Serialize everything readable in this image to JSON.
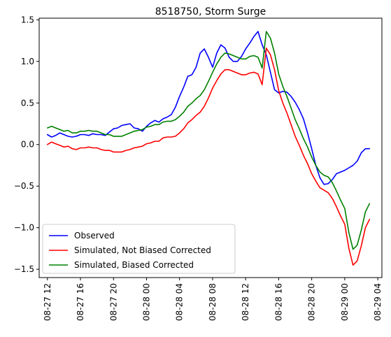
{
  "chart_data": {
    "type": "line",
    "title": "8518750, Storm Surge",
    "xlabel": "",
    "ylabel": "",
    "x_unit": "datetime",
    "xlim": [
      "2021-08-27 11:00",
      "2021-08-29 04:30"
    ],
    "ylim": [
      -1.6,
      1.52
    ],
    "x_ticks": [
      {
        "value": "2021-08-27 12:00",
        "label": "08-27 12"
      },
      {
        "value": "2021-08-27 16:00",
        "label": "08-27 16"
      },
      {
        "value": "2021-08-27 20:00",
        "label": "08-27 20"
      },
      {
        "value": "2021-08-28 00:00",
        "label": "08-28 00"
      },
      {
        "value": "2021-08-28 04:00",
        "label": "08-28 04"
      },
      {
        "value": "2021-08-28 08:00",
        "label": "08-28 08"
      },
      {
        "value": "2021-08-28 12:00",
        "label": "08-28 12"
      },
      {
        "value": "2021-08-28 16:00",
        "label": "08-28 16"
      },
      {
        "value": "2021-08-28 20:00",
        "label": "08-28 20"
      },
      {
        "value": "2021-08-29 00:00",
        "label": "08-29 00"
      },
      {
        "value": "2021-08-29 04:00",
        "label": "08-29 04"
      }
    ],
    "y_ticks": [
      {
        "value": 1.5,
        "label": "1.5"
      },
      {
        "value": 1.0,
        "label": "1.0"
      },
      {
        "value": 0.5,
        "label": "0.5"
      },
      {
        "value": 0.0,
        "label": "0.0"
      },
      {
        "value": -0.5,
        "label": "−0.5"
      },
      {
        "value": -1.0,
        "label": "−1.0"
      },
      {
        "value": -1.5,
        "label": "−1.5"
      }
    ],
    "grid": false,
    "legend_position": "lower-left",
    "series": [
      {
        "name": "Observed",
        "color": "#0000ff",
        "points": [
          [
            "2021-08-27 12:00",
            0.12
          ],
          [
            "2021-08-27 12:30",
            0.09
          ],
          [
            "2021-08-27 13:00",
            0.11
          ],
          [
            "2021-08-27 13:30",
            0.14
          ],
          [
            "2021-08-27 14:00",
            0.12
          ],
          [
            "2021-08-27 14:30",
            0.1
          ],
          [
            "2021-08-27 15:00",
            0.09
          ],
          [
            "2021-08-27 15:30",
            0.1
          ],
          [
            "2021-08-27 16:00",
            0.12
          ],
          [
            "2021-08-27 16:30",
            0.12
          ],
          [
            "2021-08-27 17:00",
            0.11
          ],
          [
            "2021-08-27 17:30",
            0.13
          ],
          [
            "2021-08-27 18:00",
            0.12
          ],
          [
            "2021-08-27 18:30",
            0.12
          ],
          [
            "2021-08-27 19:00",
            0.11
          ],
          [
            "2021-08-27 19:30",
            0.15
          ],
          [
            "2021-08-27 20:00",
            0.19
          ],
          [
            "2021-08-27 20:30",
            0.2
          ],
          [
            "2021-08-27 21:00",
            0.23
          ],
          [
            "2021-08-27 21:30",
            0.24
          ],
          [
            "2021-08-27 22:00",
            0.25
          ],
          [
            "2021-08-27 22:30",
            0.2
          ],
          [
            "2021-08-27 23:00",
            0.19
          ],
          [
            "2021-08-27 23:30",
            0.16
          ],
          [
            "2021-08-28 00:00",
            0.22
          ],
          [
            "2021-08-28 00:30",
            0.26
          ],
          [
            "2021-08-28 01:00",
            0.29
          ],
          [
            "2021-08-28 01:30",
            0.27
          ],
          [
            "2021-08-28 02:00",
            0.31
          ],
          [
            "2021-08-28 02:30",
            0.33
          ],
          [
            "2021-08-28 03:00",
            0.36
          ],
          [
            "2021-08-28 03:30",
            0.45
          ],
          [
            "2021-08-28 04:00",
            0.58
          ],
          [
            "2021-08-28 04:30",
            0.69
          ],
          [
            "2021-08-28 05:00",
            0.82
          ],
          [
            "2021-08-28 05:30",
            0.84
          ],
          [
            "2021-08-28 06:00",
            0.93
          ],
          [
            "2021-08-28 06:30",
            1.1
          ],
          [
            "2021-08-28 07:00",
            1.15
          ],
          [
            "2021-08-28 07:30",
            1.05
          ],
          [
            "2021-08-28 08:00",
            0.93
          ],
          [
            "2021-08-28 08:30",
            1.1
          ],
          [
            "2021-08-28 09:00",
            1.2
          ],
          [
            "2021-08-28 09:30",
            1.16
          ],
          [
            "2021-08-28 10:00",
            1.05
          ],
          [
            "2021-08-28 10:30",
            1.0
          ],
          [
            "2021-08-28 11:00",
            1.0
          ],
          [
            "2021-08-28 11:30",
            1.06
          ],
          [
            "2021-08-28 12:00",
            1.15
          ],
          [
            "2021-08-28 12:30",
            1.22
          ],
          [
            "2021-08-28 13:00",
            1.3
          ],
          [
            "2021-08-28 13:30",
            1.36
          ],
          [
            "2021-08-28 14:00",
            1.2
          ],
          [
            "2021-08-28 14:30",
            1.08
          ],
          [
            "2021-08-28 15:00",
            0.87
          ],
          [
            "2021-08-28 15:30",
            0.66
          ],
          [
            "2021-08-28 16:00",
            0.62
          ],
          [
            "2021-08-28 16:30",
            0.64
          ],
          [
            "2021-08-28 17:00",
            0.63
          ],
          [
            "2021-08-28 17:30",
            0.58
          ],
          [
            "2021-08-28 18:00",
            0.51
          ],
          [
            "2021-08-28 18:30",
            0.42
          ],
          [
            "2021-08-28 19:00",
            0.31
          ],
          [
            "2021-08-28 19:30",
            0.14
          ],
          [
            "2021-08-28 20:00",
            -0.05
          ],
          [
            "2021-08-28 20:30",
            -0.25
          ],
          [
            "2021-08-28 21:00",
            -0.4
          ],
          [
            "2021-08-28 21:30",
            -0.48
          ],
          [
            "2021-08-28 22:00",
            -0.47
          ],
          [
            "2021-08-28 22:30",
            -0.42
          ],
          [
            "2021-08-28 23:00",
            -0.35
          ],
          [
            "2021-08-28 23:30",
            -0.33
          ],
          [
            "2021-08-29 00:00",
            -0.31
          ],
          [
            "2021-08-29 00:30",
            -0.28
          ],
          [
            "2021-08-29 01:00",
            -0.25
          ],
          [
            "2021-08-29 01:30",
            -0.2
          ],
          [
            "2021-08-29 02:00",
            -0.1
          ],
          [
            "2021-08-29 02:30",
            -0.05
          ],
          [
            "2021-08-29 03:00",
            -0.05
          ]
        ]
      },
      {
        "name": "Simulated, Not Biased Corrected",
        "color": "#ff0000",
        "points": [
          [
            "2021-08-27 12:00",
            0.0
          ],
          [
            "2021-08-27 12:30",
            0.03
          ],
          [
            "2021-08-27 13:00",
            0.01
          ],
          [
            "2021-08-27 13:30",
            -0.01
          ],
          [
            "2021-08-27 14:00",
            -0.03
          ],
          [
            "2021-08-27 14:30",
            -0.02
          ],
          [
            "2021-08-27 15:00",
            -0.05
          ],
          [
            "2021-08-27 15:30",
            -0.06
          ],
          [
            "2021-08-27 16:00",
            -0.04
          ],
          [
            "2021-08-27 16:30",
            -0.04
          ],
          [
            "2021-08-27 17:00",
            -0.03
          ],
          [
            "2021-08-27 17:30",
            -0.04
          ],
          [
            "2021-08-27 18:00",
            -0.04
          ],
          [
            "2021-08-27 18:30",
            -0.06
          ],
          [
            "2021-08-27 19:00",
            -0.07
          ],
          [
            "2021-08-27 19:30",
            -0.07
          ],
          [
            "2021-08-27 20:00",
            -0.09
          ],
          [
            "2021-08-27 20:30",
            -0.09
          ],
          [
            "2021-08-27 21:00",
            -0.09
          ],
          [
            "2021-08-27 21:30",
            -0.07
          ],
          [
            "2021-08-27 22:00",
            -0.06
          ],
          [
            "2021-08-27 22:30",
            -0.04
          ],
          [
            "2021-08-27 23:00",
            -0.03
          ],
          [
            "2021-08-27 23:30",
            -0.02
          ],
          [
            "2021-08-28 00:00",
            0.01
          ],
          [
            "2021-08-28 00:30",
            0.02
          ],
          [
            "2021-08-28 01:00",
            0.04
          ],
          [
            "2021-08-28 01:30",
            0.04
          ],
          [
            "2021-08-28 02:00",
            0.08
          ],
          [
            "2021-08-28 02:30",
            0.09
          ],
          [
            "2021-08-28 03:00",
            0.09
          ],
          [
            "2021-08-28 03:30",
            0.1
          ],
          [
            "2021-08-28 04:00",
            0.14
          ],
          [
            "2021-08-28 04:30",
            0.19
          ],
          [
            "2021-08-28 05:00",
            0.26
          ],
          [
            "2021-08-28 05:30",
            0.3
          ],
          [
            "2021-08-28 06:00",
            0.35
          ],
          [
            "2021-08-28 06:30",
            0.39
          ],
          [
            "2021-08-28 07:00",
            0.46
          ],
          [
            "2021-08-28 07:30",
            0.56
          ],
          [
            "2021-08-28 08:00",
            0.68
          ],
          [
            "2021-08-28 08:30",
            0.77
          ],
          [
            "2021-08-28 09:00",
            0.85
          ],
          [
            "2021-08-28 09:30",
            0.9
          ],
          [
            "2021-08-28 10:00",
            0.9
          ],
          [
            "2021-08-28 10:30",
            0.88
          ],
          [
            "2021-08-28 11:00",
            0.86
          ],
          [
            "2021-08-28 11:30",
            0.84
          ],
          [
            "2021-08-28 12:00",
            0.84
          ],
          [
            "2021-08-28 12:30",
            0.86
          ],
          [
            "2021-08-28 13:00",
            0.87
          ],
          [
            "2021-08-28 13:30",
            0.85
          ],
          [
            "2021-08-28 14:00",
            0.72
          ],
          [
            "2021-08-28 14:30",
            1.16
          ],
          [
            "2021-08-28 15:00",
            1.08
          ],
          [
            "2021-08-28 15:30",
            0.9
          ],
          [
            "2021-08-28 16:00",
            0.65
          ],
          [
            "2021-08-28 16:30",
            0.5
          ],
          [
            "2021-08-28 17:00",
            0.38
          ],
          [
            "2021-08-28 17:30",
            0.24
          ],
          [
            "2021-08-28 18:00",
            0.1
          ],
          [
            "2021-08-28 18:30",
            -0.01
          ],
          [
            "2021-08-28 19:00",
            -0.13
          ],
          [
            "2021-08-28 19:30",
            -0.23
          ],
          [
            "2021-08-28 20:00",
            -0.35
          ],
          [
            "2021-08-28 20:30",
            -0.44
          ],
          [
            "2021-08-28 21:00",
            -0.52
          ],
          [
            "2021-08-28 21:30",
            -0.55
          ],
          [
            "2021-08-28 22:00",
            -0.58
          ],
          [
            "2021-08-28 22:30",
            -0.65
          ],
          [
            "2021-08-28 23:00",
            -0.75
          ],
          [
            "2021-08-28 23:30",
            -0.86
          ],
          [
            "2021-08-29 00:00",
            -0.96
          ],
          [
            "2021-08-29 00:30",
            -1.25
          ],
          [
            "2021-08-29 01:00",
            -1.45
          ],
          [
            "2021-08-29 01:30",
            -1.4
          ],
          [
            "2021-08-29 02:00",
            -1.22
          ],
          [
            "2021-08-29 02:30",
            -1.0
          ],
          [
            "2021-08-29 03:00",
            -0.9
          ]
        ]
      },
      {
        "name": "Simulated, Biased Corrected",
        "color": "#008000",
        "points": [
          [
            "2021-08-27 12:00",
            0.2
          ],
          [
            "2021-08-27 12:30",
            0.22
          ],
          [
            "2021-08-27 13:00",
            0.2
          ],
          [
            "2021-08-27 13:30",
            0.18
          ],
          [
            "2021-08-27 14:00",
            0.16
          ],
          [
            "2021-08-27 14:30",
            0.17
          ],
          [
            "2021-08-27 15:00",
            0.14
          ],
          [
            "2021-08-27 15:30",
            0.14
          ],
          [
            "2021-08-27 16:00",
            0.16
          ],
          [
            "2021-08-27 16:30",
            0.16
          ],
          [
            "2021-08-27 17:00",
            0.17
          ],
          [
            "2021-08-27 17:30",
            0.16
          ],
          [
            "2021-08-27 18:00",
            0.16
          ],
          [
            "2021-08-27 18:30",
            0.14
          ],
          [
            "2021-08-27 19:00",
            0.12
          ],
          [
            "2021-08-27 19:30",
            0.12
          ],
          [
            "2021-08-27 20:00",
            0.1
          ],
          [
            "2021-08-27 20:30",
            0.1
          ],
          [
            "2021-08-27 21:00",
            0.1
          ],
          [
            "2021-08-27 21:30",
            0.12
          ],
          [
            "2021-08-27 22:00",
            0.14
          ],
          [
            "2021-08-27 22:30",
            0.16
          ],
          [
            "2021-08-27 23:00",
            0.17
          ],
          [
            "2021-08-27 23:30",
            0.18
          ],
          [
            "2021-08-28 00:00",
            0.21
          ],
          [
            "2021-08-28 00:30",
            0.22
          ],
          [
            "2021-08-28 01:00",
            0.24
          ],
          [
            "2021-08-28 01:30",
            0.24
          ],
          [
            "2021-08-28 02:00",
            0.27
          ],
          [
            "2021-08-28 02:30",
            0.28
          ],
          [
            "2021-08-28 03:00",
            0.28
          ],
          [
            "2021-08-28 03:30",
            0.3
          ],
          [
            "2021-08-28 04:00",
            0.34
          ],
          [
            "2021-08-28 04:30",
            0.39
          ],
          [
            "2021-08-28 05:00",
            0.46
          ],
          [
            "2021-08-28 05:30",
            0.5
          ],
          [
            "2021-08-28 06:00",
            0.55
          ],
          [
            "2021-08-28 06:30",
            0.59
          ],
          [
            "2021-08-28 07:00",
            0.66
          ],
          [
            "2021-08-28 07:30",
            0.76
          ],
          [
            "2021-08-28 08:00",
            0.87
          ],
          [
            "2021-08-28 08:30",
            0.97
          ],
          [
            "2021-08-28 09:00",
            1.05
          ],
          [
            "2021-08-28 09:30",
            1.1
          ],
          [
            "2021-08-28 10:00",
            1.09
          ],
          [
            "2021-08-28 10:30",
            1.07
          ],
          [
            "2021-08-28 11:00",
            1.05
          ],
          [
            "2021-08-28 11:30",
            1.03
          ],
          [
            "2021-08-28 12:00",
            1.03
          ],
          [
            "2021-08-28 12:30",
            1.06
          ],
          [
            "2021-08-28 13:00",
            1.07
          ],
          [
            "2021-08-28 13:30",
            1.05
          ],
          [
            "2021-08-28 14:00",
            0.92
          ],
          [
            "2021-08-28 14:30",
            1.36
          ],
          [
            "2021-08-28 15:00",
            1.28
          ],
          [
            "2021-08-28 15:30",
            1.1
          ],
          [
            "2021-08-28 16:00",
            0.85
          ],
          [
            "2021-08-28 16:30",
            0.7
          ],
          [
            "2021-08-28 17:00",
            0.58
          ],
          [
            "2021-08-28 17:30",
            0.44
          ],
          [
            "2021-08-28 18:00",
            0.3
          ],
          [
            "2021-08-28 18:30",
            0.19
          ],
          [
            "2021-08-28 19:00",
            0.07
          ],
          [
            "2021-08-28 19:30",
            -0.03
          ],
          [
            "2021-08-28 20:00",
            -0.15
          ],
          [
            "2021-08-28 20:30",
            -0.25
          ],
          [
            "2021-08-28 21:00",
            -0.33
          ],
          [
            "2021-08-28 21:30",
            -0.37
          ],
          [
            "2021-08-28 22:00",
            -0.39
          ],
          [
            "2021-08-28 22:30",
            -0.46
          ],
          [
            "2021-08-28 23:00",
            -0.56
          ],
          [
            "2021-08-28 23:30",
            -0.67
          ],
          [
            "2021-08-29 00:00",
            -0.77
          ],
          [
            "2021-08-29 00:30",
            -1.06
          ],
          [
            "2021-08-29 01:00",
            -1.26
          ],
          [
            "2021-08-29 01:30",
            -1.21
          ],
          [
            "2021-08-29 02:00",
            -1.03
          ],
          [
            "2021-08-29 02:30",
            -0.81
          ],
          [
            "2021-08-29 03:00",
            -0.71
          ]
        ]
      }
    ]
  }
}
